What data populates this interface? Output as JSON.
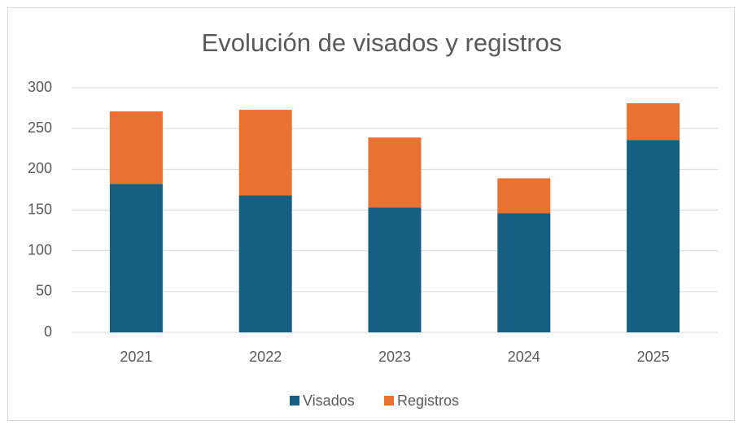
{
  "chart_data": {
    "type": "stacked_bar",
    "title": "Evolución de visados y registros",
    "categories": [
      "2021",
      "2022",
      "2023",
      "2024",
      "2025"
    ],
    "series": [
      {
        "name": "Visados",
        "color": "#156082",
        "values": [
          182,
          168,
          153,
          146,
          236
        ]
      },
      {
        "name": "Registros",
        "color": "#e97132",
        "values": [
          89,
          105,
          86,
          43,
          45
        ]
      }
    ],
    "ylim": [
      0,
      300
    ],
    "yticks": [
      0,
      50,
      100,
      150,
      200,
      250,
      300
    ],
    "grid": true,
    "legend": "bottom"
  }
}
